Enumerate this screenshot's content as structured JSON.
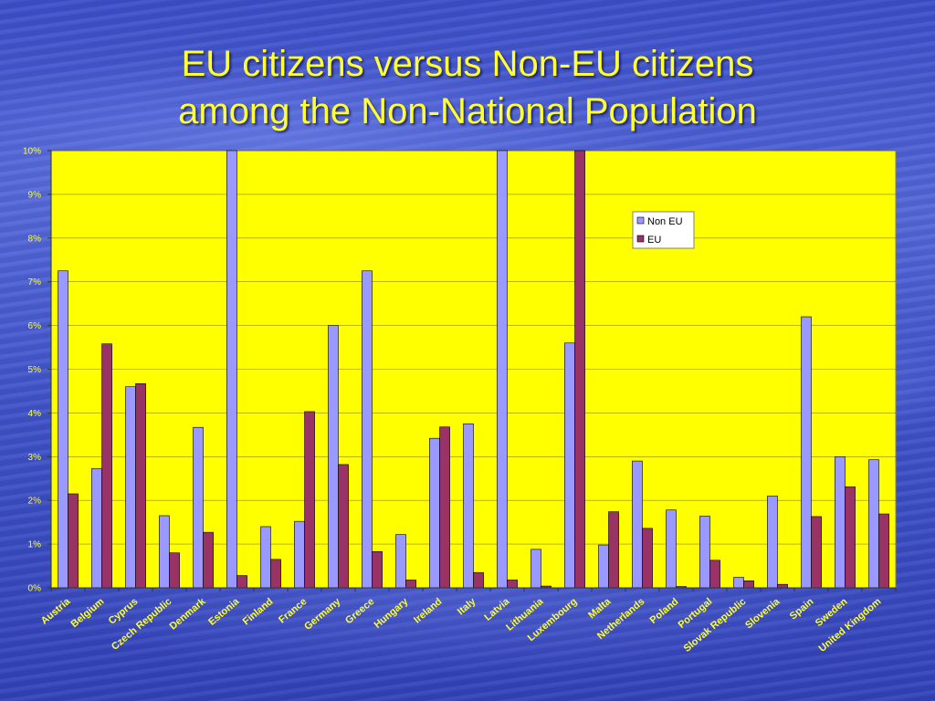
{
  "slide": {
    "title_line1": "EU citizens versus Non-EU citizens",
    "title_line2": "among the Non-National Population"
  },
  "colors": {
    "plot_bg": "#ffff00",
    "non_eu": "#9999ff",
    "eu": "#993366",
    "label": "#ffff33"
  },
  "chart_data": {
    "type": "bar",
    "title": "EU citizens versus Non-EU citizens among the Non-National Population",
    "categories": [
      "Austria",
      "Belgium",
      "Cyprus",
      "Czech Republic",
      "Denmark",
      "Estonia",
      "Finland",
      "France",
      "Germany",
      "Greece",
      "Hungary",
      "Ireland",
      "Italy",
      "Latvia",
      "Lithuania",
      "Luxembourg",
      "Malta",
      "Netherlands",
      "Poland",
      "Portugal",
      "Slovak Republic",
      "Slovenia",
      "Spain",
      "Sweden",
      "United Kingdom"
    ],
    "series": [
      {
        "name": "Non EU",
        "values": [
          7.25,
          2.73,
          4.6,
          1.65,
          3.67,
          10.0,
          1.4,
          1.52,
          6.0,
          7.25,
          1.22,
          3.42,
          3.75,
          10.0,
          0.88,
          5.6,
          0.98,
          2.9,
          1.78,
          1.64,
          0.24,
          2.1,
          6.2,
          3.0,
          2.93
        ]
      },
      {
        "name": "EU",
        "values": [
          2.15,
          5.58,
          4.67,
          0.8,
          1.27,
          0.28,
          0.65,
          4.03,
          2.82,
          0.83,
          0.18,
          3.68,
          0.35,
          0.18,
          0.04,
          10.0,
          1.74,
          1.36,
          0.03,
          0.63,
          0.16,
          0.08,
          1.63,
          2.31,
          1.69
        ]
      }
    ],
    "ylim": [
      0,
      10
    ],
    "yticks": [
      "0%",
      "1%",
      "2%",
      "3%",
      "4%",
      "5%",
      "6%",
      "7%",
      "8%",
      "9%",
      "10%"
    ],
    "grid": true,
    "legend": "top-right"
  }
}
